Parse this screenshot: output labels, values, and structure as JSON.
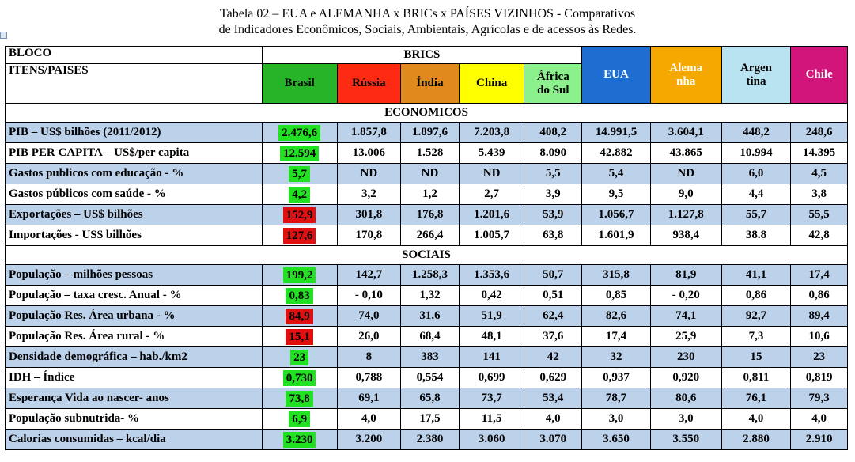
{
  "title": {
    "line1": "Tabela 02 – EUA e ALEMANHA x BRICs x PAÍSES VIZINHOS - Comparativos",
    "line2": "de Indicadores Econômicos, Sociais, Ambientais, Agrícolas e de acessos às Redes."
  },
  "header": {
    "bloco": "BLOCO",
    "itens": "ITENS/PAISES",
    "brics": "BRICS",
    "countries": [
      {
        "name": "Brasil",
        "line2": "",
        "color": "#28b428"
      },
      {
        "name": "Rússia",
        "line2": "",
        "color": "#ff2a12"
      },
      {
        "name": "Índia",
        "line2": "",
        "color": "#e08a1e"
      },
      {
        "name": "China",
        "line2": "",
        "color": "#ffff00"
      },
      {
        "name": "África",
        "line2": "do Sul",
        "color": "#8cf08c"
      },
      {
        "name": "EUA",
        "line2": "",
        "color": "#1e6ed2"
      },
      {
        "name": "Alema",
        "line2": "nha",
        "color": "#f5a800"
      },
      {
        "name": "Argen",
        "line2": "tina",
        "color": "#b9e3f0"
      },
      {
        "name": "Chile",
        "line2": "",
        "color": "#d2157a"
      }
    ]
  },
  "sections": [
    {
      "title": "ECONOMICOS",
      "rows": [
        {
          "label": "PIB – US$ bilhões (2011/2012)",
          "hl": "green",
          "shade": true,
          "values": [
            "2.476,6",
            "1.857,8",
            "1.897,6",
            "7.203,8",
            "408,2",
            "14.991,5",
            "3.604,1",
            "448,2",
            "248,6"
          ]
        },
        {
          "label": "PIB PER CAPITA – US$/per capita",
          "hl": "green",
          "shade": false,
          "values": [
            "12.594",
            "13.006",
            "1.528",
            "5.439",
            "8.090",
            "42.882",
            "43.865",
            "10.994",
            "14.395"
          ]
        },
        {
          "label": "Gastos publicos com educação - %",
          "hl": "green",
          "shade": true,
          "values": [
            "5,7",
            "ND",
            "ND",
            "ND",
            "5,5",
            "5,4",
            "ND",
            "6,0",
            "4,5"
          ]
        },
        {
          "label": "Gastos públicos com saúde - %",
          "hl": "green",
          "shade": false,
          "values": [
            "4,2",
            "3,2",
            "1,2",
            "2,7",
            "3,9",
            "9,5",
            "9,0",
            "4,4",
            "3,8"
          ]
        },
        {
          "label": "Exportações – US$ bilhões",
          "hl": "red",
          "shade": true,
          "values": [
            "152,9",
            "301,8",
            "176,8",
            "1.201,6",
            "53,9",
            "1.056,7",
            "1.127,8",
            "55,7",
            "55,5"
          ]
        },
        {
          "label": "Importações - US$ bilhões",
          "hl": "red",
          "shade": false,
          "values": [
            "127,6",
            "170,8",
            "266,4",
            "1.005,7",
            "63,8",
            "1.601,9",
            "938,4",
            "38.8",
            "42,8"
          ]
        }
      ]
    },
    {
      "title": "SOCIAIS",
      "rows": [
        {
          "label": "População – milhões pessoas",
          "hl": "green",
          "shade": true,
          "values": [
            "199,2",
            "142,7",
            "1.258,3",
            "1.353,6",
            "50,7",
            "315,8",
            "81,9",
            "41,1",
            "17,4"
          ]
        },
        {
          "label": "População – taxa cresc. Anual - %",
          "hl": "green",
          "shade": false,
          "values": [
            "0,83",
            "- 0,10",
            "1,32",
            "0,42",
            "0,51",
            "0,85",
            "- 0,20",
            "0,86",
            "0,86"
          ]
        },
        {
          "label": "População Res. Área urbana - %",
          "hl": "red",
          "shade": true,
          "values": [
            "84,9",
            "74,0",
            "31.6",
            "51,9",
            "62,4",
            "82,6",
            "74,1",
            "92,7",
            "89,4"
          ]
        },
        {
          "label": "População Res. Área rural - %",
          "hl": "red",
          "shade": false,
          "values": [
            "15,1",
            "26,0",
            "68,4",
            "48,1",
            "37,6",
            "17,4",
            "25,9",
            "7,3",
            "10,6"
          ]
        },
        {
          "label": "Densidade demográfica – hab./km2",
          "hl": "green",
          "shade": true,
          "values": [
            "23",
            "8",
            "383",
            "141",
            "42",
            "32",
            "230",
            "15",
            "23"
          ]
        },
        {
          "label": "IDH –  Índice",
          "hl": "green",
          "shade": false,
          "values": [
            "0,730",
            "0,788",
            "0,554",
            "0,699",
            "0,629",
            "0,937",
            "0,920",
            "0,811",
            "0,819"
          ]
        },
        {
          "label": "Esperança Vida ao nascer- anos",
          "hl": "green",
          "shade": true,
          "values": [
            "73,8",
            "69,1",
            "65,8",
            "73,7",
            "53,4",
            "78,7",
            "80,6",
            "76,1",
            "79,3"
          ]
        },
        {
          "label": "População subnutrida- %",
          "hl": "green",
          "shade": false,
          "values": [
            "6,9",
            "4,0",
            "17,5",
            "11,5",
            "4,0",
            "3,0",
            "3,0",
            "4,0",
            "4,0"
          ]
        },
        {
          "label": "Calorias consumidas – kcal/dia",
          "hl": "green",
          "shade": true,
          "values": [
            "3.230",
            "3.200",
            "2.380",
            "3.060",
            "3.070",
            "3.650",
            "3.550",
            "2.880",
            "2.910"
          ]
        }
      ]
    }
  ]
}
